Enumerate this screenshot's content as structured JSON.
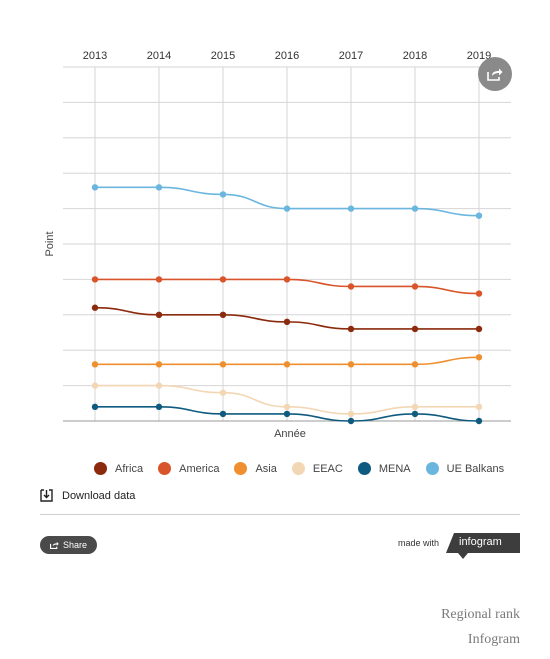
{
  "chart_data": {
    "type": "line",
    "x": [
      "2013",
      "2014",
      "2015",
      "2016",
      "2017",
      "2018",
      "2019"
    ],
    "ylabel": "Point",
    "xlabel": "Année",
    "ylim": [
      0,
      10
    ],
    "grid": true,
    "legend_position": "bottom",
    "series": [
      {
        "name": "Africa",
        "color": "#8b2a0c",
        "values": [
          3.2,
          3.0,
          3.0,
          2.8,
          2.6,
          2.6,
          2.6
        ]
      },
      {
        "name": "America",
        "color": "#d9542a",
        "values": [
          4.0,
          4.0,
          4.0,
          4.0,
          3.8,
          3.8,
          3.6
        ]
      },
      {
        "name": "Asia",
        "color": "#ef8f2f",
        "values": [
          1.6,
          1.6,
          1.6,
          1.6,
          1.6,
          1.6,
          1.8
        ]
      },
      {
        "name": "EEAC",
        "color": "#f3d6b4",
        "values": [
          1.0,
          1.0,
          0.8,
          0.4,
          0.2,
          0.4,
          0.4
        ]
      },
      {
        "name": "MENA",
        "color": "#0f5a7f",
        "values": [
          0.4,
          0.4,
          0.2,
          0.2,
          0.0,
          0.2,
          0.0
        ]
      },
      {
        "name": "UE Balkans",
        "color": "#6bb6df",
        "values": [
          6.6,
          6.6,
          6.4,
          6.0,
          6.0,
          6.0,
          5.8
        ]
      }
    ]
  },
  "download_label": "Download data",
  "share_label": "Share",
  "made_with_label": "made with",
  "brand_label": "infogram",
  "caption_title": "Regional rank",
  "caption_source": "Infogram"
}
